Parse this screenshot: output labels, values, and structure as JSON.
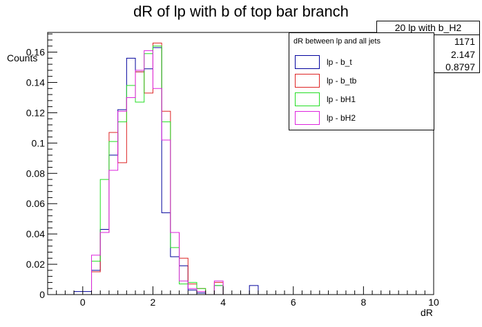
{
  "chart_data": {
    "type": "histogram",
    "title": "dR of lp with b of top bar branch",
    "xlabel": "dR",
    "ylabel": "Counts",
    "xlim": [
      -1,
      10
    ],
    "ylim": [
      0,
      0.173
    ],
    "bin_edges": [
      -0.25,
      0.0,
      0.25,
      0.5,
      0.75,
      1.0,
      1.25,
      1.5,
      1.75,
      2.0,
      2.25,
      2.5,
      2.75,
      3.0,
      3.25,
      3.5,
      3.75,
      4.0,
      4.25,
      4.5,
      4.75,
      5.0,
      5.25,
      5.5,
      5.75,
      6.0,
      6.25
    ],
    "x_ticks": [
      "0",
      "2",
      "4",
      "6",
      "8",
      "10"
    ],
    "y_ticks": [
      "0",
      "0.02",
      "0.04",
      "0.06",
      "0.08",
      "0.1",
      "0.12",
      "0.14",
      "0.16"
    ],
    "series": [
      {
        "name": "lp - b_t",
        "color": "#00009c",
        "values": [
          0.002,
          0.002,
          0.016,
          0.043,
          0.092,
          0.122,
          0.156,
          0.147,
          0.149,
          0.163,
          0.054,
          0.025,
          0.019,
          0.003,
          0.001,
          0.0,
          0.006,
          0.0,
          0.0,
          0.0,
          0.006,
          0.0,
          0.0,
          0.0,
          0.0,
          0.0
        ]
      },
      {
        "name": "lp - b_tb",
        "color": "#dd2222",
        "values": [
          0.0,
          0.0,
          0.015,
          0.041,
          0.107,
          0.087,
          0.13,
          0.147,
          0.133,
          0.166,
          0.121,
          0.041,
          0.024,
          0.007,
          0.004,
          0.0,
          0.008,
          0.0,
          0.0,
          0.0,
          0.0,
          0.0,
          0.0,
          0.0,
          0.0,
          0.0
        ]
      },
      {
        "name": "lp - bH1",
        "color": "#22dd22",
        "values": [
          0.0,
          0.0,
          0.022,
          0.076,
          0.101,
          0.114,
          0.138,
          0.127,
          0.159,
          0.164,
          0.114,
          0.031,
          0.007,
          0.008,
          0.004,
          0.0,
          0.006,
          0.0,
          0.0,
          0.0,
          0.0,
          0.0,
          0.0,
          0.0,
          0.0,
          0.0
        ]
      },
      {
        "name": "lp - bH2",
        "color": "#dd22dd",
        "values": [
          0.0,
          0.0,
          0.026,
          0.041,
          0.082,
          0.121,
          0.13,
          0.148,
          0.161,
          0.136,
          0.102,
          0.041,
          0.009,
          0.004,
          0.002,
          0.0,
          0.009,
          0.0,
          0.0,
          0.0,
          0.0,
          0.0,
          0.0,
          0.0,
          0.0,
          0.0
        ]
      }
    ],
    "legend_header": "dR between lp and all jets",
    "legend_position": "top-right"
  },
  "stats": {
    "name": "20 lp with b_H2",
    "entries": "1171",
    "mean": "2.147",
    "rms": "0.8797"
  }
}
